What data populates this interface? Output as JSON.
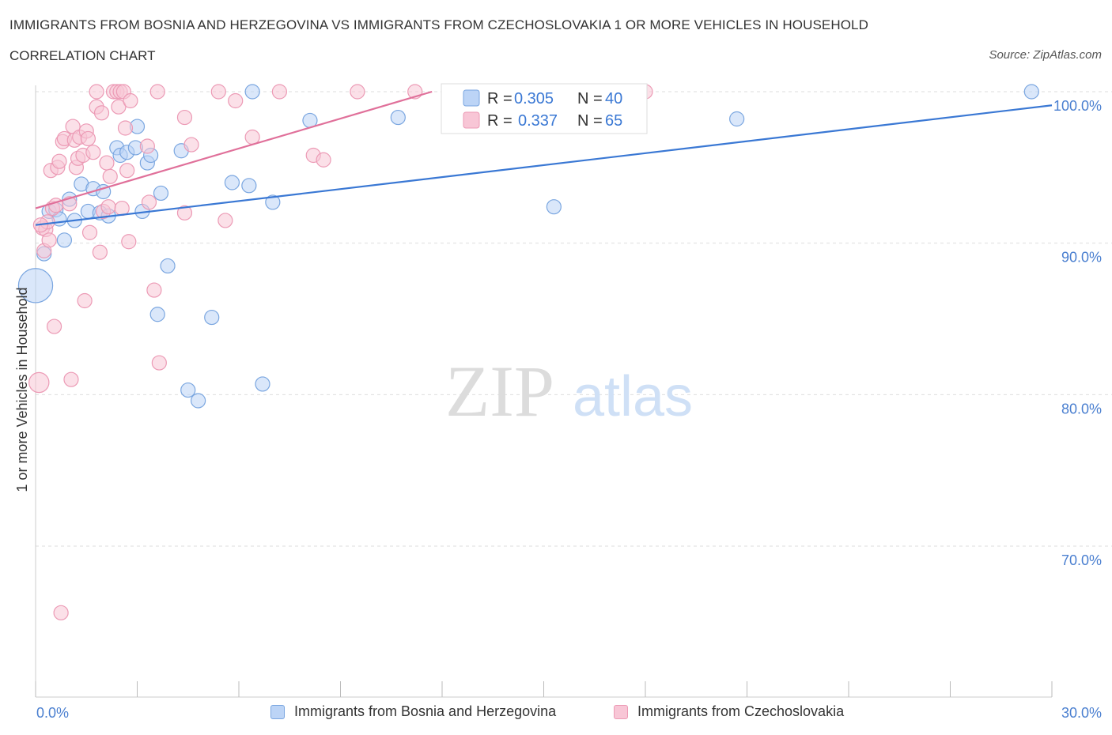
{
  "title": "IMMIGRANTS FROM BOSNIA AND HERZEGOVINA VS IMMIGRANTS FROM CZECHOSLOVAKIA 1 OR MORE VEHICLES IN HOUSEHOLD",
  "subtitle": "CORRELATION CHART",
  "source": "Source: ZipAtlas.com",
  "watermark": {
    "zip": "ZIP",
    "atlas": "atlas"
  },
  "colors": {
    "blue_fill": "#bcd4f6",
    "blue_stroke": "#7aa6e0",
    "blue_line": "#3a78d4",
    "pink_fill": "#f8c6d6",
    "pink_stroke": "#ec9ab5",
    "pink_line": "#e0709a",
    "tick_text": "#4a7fd0",
    "grid": "#dddddd"
  },
  "legend_box": {
    "rows": [
      {
        "r_label": "R = ",
        "r_value": "0.305",
        "n_label": "N = ",
        "n_value": "40"
      },
      {
        "r_label": "R = ",
        "r_value": "0.337",
        "n_label": "N = ",
        "n_value": "65"
      }
    ]
  },
  "chart_data": {
    "type": "scatter",
    "xlabel": "",
    "ylabel": "1 or more Vehicles in Household",
    "xlim": [
      0,
      30
    ],
    "ylim": [
      60,
      100
    ],
    "x_tick_labels": [
      "0.0%",
      "30.0%"
    ],
    "y_ticks": [
      70,
      80,
      90,
      100
    ],
    "y_tick_labels": [
      "70.0%",
      "80.0%",
      "90.0%",
      "100.0%"
    ],
    "grid": true,
    "legend_position": "bottom",
    "series": [
      {
        "name": "Immigrants from Bosnia and Herzegovina",
        "color": "blue",
        "trend": {
          "x": [
            0,
            30
          ],
          "y": [
            91.2,
            99.1
          ]
        },
        "points": [
          [
            0.0,
            87.2,
            2.4
          ],
          [
            0.25,
            89.3,
            1
          ],
          [
            0.4,
            92.1,
            1
          ],
          [
            0.6,
            92.2,
            1
          ],
          [
            0.7,
            91.6,
            1
          ],
          [
            0.85,
            90.2,
            1
          ],
          [
            1.0,
            92.9,
            1
          ],
          [
            1.15,
            91.5,
            1
          ],
          [
            1.35,
            93.9,
            1
          ],
          [
            1.55,
            92.1,
            1
          ],
          [
            1.7,
            93.6,
            1
          ],
          [
            1.9,
            92.0,
            1
          ],
          [
            2.0,
            93.4,
            1
          ],
          [
            2.15,
            91.8,
            1
          ],
          [
            2.4,
            96.3,
            1
          ],
          [
            2.5,
            95.8,
            1
          ],
          [
            2.7,
            96.0,
            1
          ],
          [
            2.95,
            96.3,
            1
          ],
          [
            3.0,
            97.7,
            1
          ],
          [
            3.15,
            92.1,
            1
          ],
          [
            3.3,
            95.3,
            1
          ],
          [
            3.4,
            95.8,
            1
          ],
          [
            3.6,
            85.3,
            1
          ],
          [
            3.7,
            93.3,
            1
          ],
          [
            3.9,
            88.5,
            1
          ],
          [
            4.3,
            96.1,
            1
          ],
          [
            4.5,
            80.3,
            1
          ],
          [
            4.8,
            79.6,
            1
          ],
          [
            5.2,
            85.1,
            1
          ],
          [
            5.8,
            94.0,
            1
          ],
          [
            6.4,
            100.0,
            1
          ],
          [
            6.3,
            93.8,
            1
          ],
          [
            7.0,
            92.7,
            1
          ],
          [
            6.7,
            80.7,
            1
          ],
          [
            8.1,
            98.1,
            1
          ],
          [
            10.7,
            98.3,
            1
          ],
          [
            12.8,
            99.9,
            1
          ],
          [
            15.3,
            92.4,
            1
          ],
          [
            20.7,
            98.2,
            1
          ],
          [
            29.4,
            100.0,
            1
          ]
        ]
      },
      {
        "name": "Immigrants from Czechoslovakia",
        "color": "pink",
        "trend": {
          "x": [
            0,
            11.7
          ],
          "y": [
            92.3,
            100.0
          ]
        },
        "points": [
          [
            0.1,
            80.8,
            1.4
          ],
          [
            0.2,
            91.0,
            1
          ],
          [
            0.25,
            89.5,
            1
          ],
          [
            0.3,
            90.9,
            1
          ],
          [
            0.35,
            91.4,
            1
          ],
          [
            0.4,
            90.2,
            1
          ],
          [
            0.45,
            94.8,
            1
          ],
          [
            0.5,
            92.3,
            1
          ],
          [
            0.55,
            84.5,
            1
          ],
          [
            0.6,
            92.5,
            1
          ],
          [
            0.65,
            95.0,
            1
          ],
          [
            0.7,
            95.4,
            1
          ],
          [
            0.75,
            65.6,
            1
          ],
          [
            0.8,
            96.7,
            1
          ],
          [
            0.85,
            96.9,
            1
          ],
          [
            1.0,
            92.6,
            1
          ],
          [
            1.05,
            81.0,
            1
          ],
          [
            1.1,
            97.7,
            1
          ],
          [
            1.15,
            96.8,
            1
          ],
          [
            1.2,
            95.0,
            1
          ],
          [
            1.25,
            95.6,
            1
          ],
          [
            1.3,
            97.0,
            1
          ],
          [
            1.4,
            95.8,
            1
          ],
          [
            1.45,
            86.2,
            1
          ],
          [
            1.5,
            97.4,
            1
          ],
          [
            1.55,
            96.9,
            1
          ],
          [
            1.6,
            90.7,
            1
          ],
          [
            1.7,
            96.0,
            1
          ],
          [
            1.8,
            100.0,
            1
          ],
          [
            1.8,
            99.0,
            1
          ],
          [
            1.9,
            89.4,
            1
          ],
          [
            1.95,
            98.6,
            1
          ],
          [
            2.0,
            92.1,
            1
          ],
          [
            2.1,
            95.3,
            1
          ],
          [
            2.15,
            92.4,
            1
          ],
          [
            2.2,
            94.4,
            1
          ],
          [
            2.3,
            100.0,
            1
          ],
          [
            2.4,
            100.0,
            1
          ],
          [
            2.45,
            99.0,
            1
          ],
          [
            2.5,
            100.0,
            1
          ],
          [
            2.55,
            92.3,
            1
          ],
          [
            2.6,
            100.0,
            1
          ],
          [
            2.65,
            97.6,
            1
          ],
          [
            2.7,
            94.8,
            1
          ],
          [
            2.75,
            90.1,
            1
          ],
          [
            2.8,
            99.4,
            1
          ],
          [
            3.3,
            96.4,
            1
          ],
          [
            3.35,
            92.7,
            1
          ],
          [
            3.6,
            100.0,
            1
          ],
          [
            3.5,
            86.9,
            1
          ],
          [
            3.65,
            82.1,
            1
          ],
          [
            4.4,
            98.3,
            1
          ],
          [
            4.4,
            92.0,
            1
          ],
          [
            4.6,
            96.5,
            1
          ],
          [
            5.4,
            100.0,
            1
          ],
          [
            5.6,
            91.5,
            1
          ],
          [
            5.9,
            99.4,
            1
          ],
          [
            6.4,
            97.0,
            1
          ],
          [
            7.2,
            100.0,
            1
          ],
          [
            8.2,
            95.8,
            1
          ],
          [
            8.5,
            95.5,
            1
          ],
          [
            9.5,
            100.0,
            1
          ],
          [
            11.2,
            100.0,
            1
          ],
          [
            18.0,
            100.0,
            1
          ],
          [
            0.15,
            91.2,
            1
          ]
        ]
      }
    ]
  }
}
